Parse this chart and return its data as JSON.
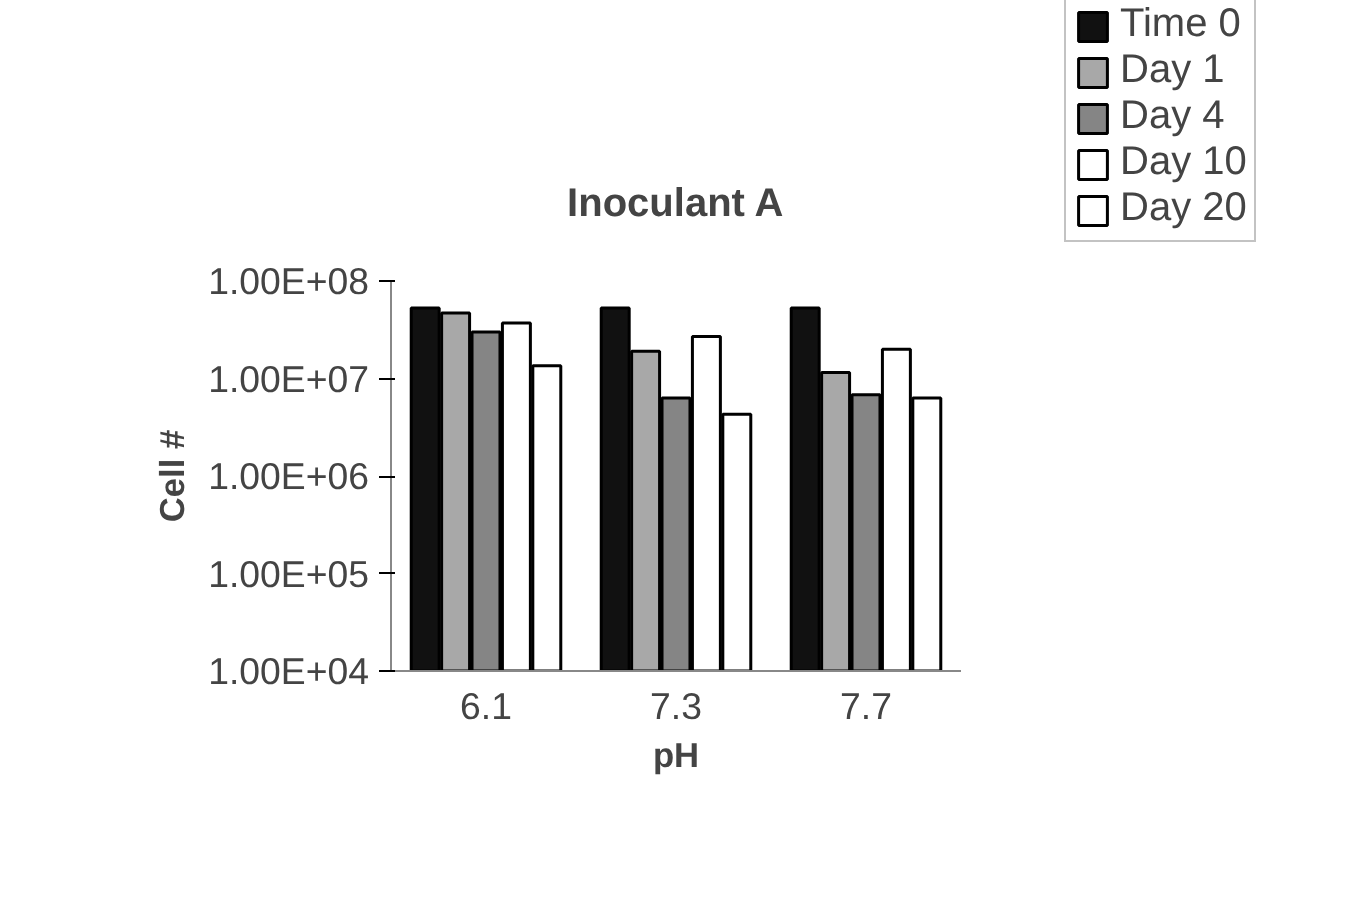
{
  "chart_data": {
    "type": "bar",
    "title": "Inoculant A",
    "xlabel": "pH",
    "ylabel": "Cell #",
    "categories": [
      "6.1",
      "7.3",
      "7.7"
    ],
    "series": [
      {
        "name": "Time 0",
        "color": "#111111",
        "values": [
          53000000,
          53000000,
          53000000
        ]
      },
      {
        "name": "Day 1",
        "color": "#a8a8a8",
        "values": [
          47000000,
          19000000,
          11500000
        ]
      },
      {
        "name": "Day 4",
        "color": "#858585",
        "values": [
          30000000,
          6300000,
          6800000
        ]
      },
      {
        "name": "Day 10",
        "color": "#ffffff",
        "values": [
          37000000,
          27000000,
          20000000
        ]
      },
      {
        "name": "Day 20",
        "color": "#ffffff",
        "values": [
          13500000,
          4300000,
          6300000
        ]
      }
    ],
    "log": "y",
    "ylim": [
      10000,
      100000000
    ],
    "yticks": [
      {
        "value": 10000,
        "label": "1.00E+04"
      },
      {
        "value": 100000,
        "label": "1.00E+05"
      },
      {
        "value": 1000000,
        "label": "1.00E+06"
      },
      {
        "value": 10000000,
        "label": "1.00E+07"
      },
      {
        "value": 100000000,
        "label": "1.00E+08"
      }
    ],
    "grid": false,
    "legend": "top right"
  }
}
